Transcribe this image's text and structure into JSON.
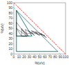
{
  "chart_data": {
    "type": "line",
    "title": "",
    "xlabel": "%(v/v)",
    "ylabel": "%(v/v)",
    "xlim": [
      0,
      100
    ],
    "ylim": [
      0,
      100
    ],
    "xticks": [
      0,
      10,
      20,
      30,
      40,
      50,
      60,
      70,
      80,
      90,
      100
    ],
    "yticks": [
      0,
      10,
      20,
      30,
      40,
      50,
      60,
      70,
      80,
      90,
      100
    ],
    "grid": false,
    "series": [
      {
        "x": [
          0,
          100
        ],
        "values": [
          100,
          0
        ],
        "color": "#ff2222",
        "line_style": "dashed"
      },
      {
        "x": [
          0,
          90
        ],
        "values": [
          90,
          0
        ],
        "color": "#55ddff",
        "line_style": "dashed"
      },
      {
        "x": [
          5,
          5
        ],
        "values": [
          85,
          5
        ],
        "color": "#22ccee",
        "line_style": "solid"
      },
      {
        "x": [
          5,
          85
        ],
        "values": [
          5,
          5
        ],
        "color": "#22ccee",
        "line_style": "solid"
      },
      {
        "x": [
          5,
          35
        ],
        "values": [
          85,
          35
        ],
        "color": "#22ccee",
        "line_style": "solid"
      },
      {
        "x": [
          5,
          35
        ],
        "values": [
          35,
          35
        ],
        "color": "#22ccee",
        "line_style": "solid"
      },
      {
        "type": "polygon",
        "x": [
          5,
          5,
          85
        ],
        "values": [
          85,
          5,
          5
        ],
        "color": "#333333",
        "line_style": "solid"
      },
      {
        "type": "polygon",
        "x": [
          5,
          5,
          35
        ],
        "values": [
          85,
          35,
          35
        ],
        "color": "#333333",
        "line_style": "solid"
      },
      {
        "type": "polygon",
        "x": [
          5,
          5,
          25
        ],
        "values": [
          62,
          35,
          35
        ],
        "color": "#333333",
        "line_style": "solid"
      },
      {
        "type": "polygon",
        "x": [
          5,
          15,
          25
        ],
        "values": [
          50,
          35,
          35
        ],
        "color": "#333333",
        "line_style": "solid"
      },
      {
        "type": "polygon",
        "x": [
          15,
          15,
          28
        ],
        "values": [
          50,
          35,
          35
        ],
        "color": "#333333",
        "line_style": "solid"
      },
      {
        "type": "polygon",
        "x": [
          15,
          25,
          28
        ],
        "values": [
          48,
          40,
          35
        ],
        "color": "#333333",
        "line_style": "solid"
      },
      {
        "type": "polygon",
        "x": [
          22,
          25,
          36
        ],
        "values": [
          48,
          40,
          40
        ],
        "color": "#333333",
        "line_style": "solid"
      },
      {
        "type": "polygon",
        "x": [
          28,
          36,
          40
        ],
        "values": [
          46,
          40,
          36
        ],
        "color": "#333333",
        "line_style": "solid"
      },
      {
        "type": "polygon",
        "x": [
          34,
          36,
          46
        ],
        "values": [
          46,
          40,
          40
        ],
        "color": "#333333",
        "line_style": "solid"
      },
      {
        "type": "polygon",
        "x": [
          36,
          46,
          50
        ],
        "values": [
          44,
          40,
          36
        ],
        "color": "#333333",
        "line_style": "solid"
      },
      {
        "type": "polygon",
        "x": [
          42,
          46,
          55
        ],
        "values": [
          44,
          38,
          38
        ],
        "color": "#333333",
        "line_style": "solid"
      },
      {
        "type": "polygon",
        "x": [
          48,
          55,
          60
        ],
        "values": [
          42,
          36,
          36
        ],
        "color": "#333333",
        "line_style": "solid"
      },
      {
        "type": "polygon",
        "x": [
          52,
          58,
          63
        ],
        "values": [
          40,
          36,
          32
        ],
        "color": "#333333",
        "line_style": "solid"
      }
    ]
  }
}
